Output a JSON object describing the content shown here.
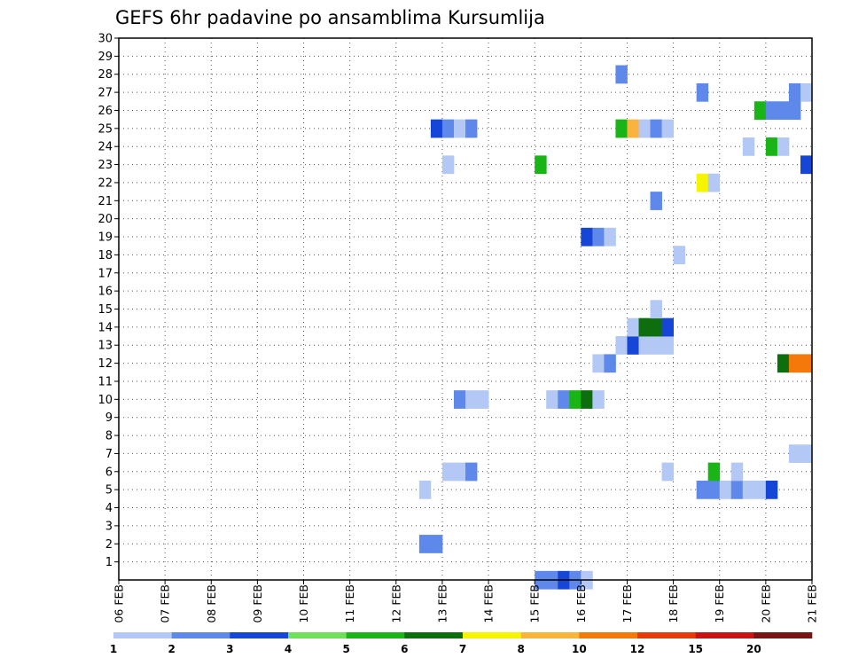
{
  "chart_data": {
    "type": "heatmap",
    "title": "GEFS 6hr padavine po ansamblima Kursumlija",
    "y_ticks": [
      "1",
      "2",
      "3",
      "4",
      "5",
      "6",
      "7",
      "8",
      "9",
      "10",
      "11",
      "12",
      "13",
      "14",
      "15",
      "16",
      "17",
      "18",
      "19",
      "20",
      "21",
      "22",
      "23",
      "24",
      "25",
      "26",
      "27",
      "28",
      "29",
      "30"
    ],
    "ylim": [
      0,
      30
    ],
    "x_ticks": [
      "06 FEB",
      "07 FEB",
      "08 FEB",
      "09 FEB",
      "10 FEB",
      "11 FEB",
      "12 FEB",
      "13 FEB",
      "14 FEB",
      "15 FEB",
      "16 FEB",
      "17 FEB",
      "18 FEB",
      "19 FEB",
      "20 FEB",
      "21 FEB"
    ],
    "x_start_day": "06 FEB",
    "steps_per_day": 4,
    "grid": true,
    "legend": "bottom",
    "colorbar": {
      "labels": [
        "1",
        "2",
        "3",
        "4",
        "5",
        "6",
        "7",
        "8",
        "10",
        "12",
        "15",
        "20"
      ],
      "colors": [
        "#b4c8f5",
        "#5e88ea",
        "#1546d6",
        "#6ee05a",
        "#19b415",
        "#0d6e0d",
        "#f5f500",
        "#fab43c",
        "#f5780a",
        "#e63c0a",
        "#c81414",
        "#781414"
      ]
    },
    "cells": [
      {
        "step": 26,
        "member": 2,
        "level": "2"
      },
      {
        "step": 27,
        "member": 2,
        "level": "2"
      },
      {
        "step": 26,
        "member": 5,
        "level": "1"
      },
      {
        "step": 28,
        "member": 6,
        "level": "1"
      },
      {
        "step": 29,
        "member": 6,
        "level": "1"
      },
      {
        "step": 30,
        "member": 6,
        "level": "2"
      },
      {
        "step": 28,
        "member": 23,
        "level": "1"
      },
      {
        "step": 27,
        "member": 25,
        "level": "3"
      },
      {
        "step": 28,
        "member": 25,
        "level": "2"
      },
      {
        "step": 29,
        "member": 25,
        "level": "1"
      },
      {
        "step": 30,
        "member": 25,
        "level": "2"
      },
      {
        "step": 29,
        "member": 10,
        "level": "2"
      },
      {
        "step": 30,
        "member": 10,
        "level": "1"
      },
      {
        "step": 31,
        "member": 10,
        "level": "1"
      },
      {
        "step": 36,
        "member": 0,
        "level": "2"
      },
      {
        "step": 37,
        "member": 0,
        "level": "2"
      },
      {
        "step": 38,
        "member": 0,
        "level": "3"
      },
      {
        "step": 39,
        "member": 0,
        "level": "2"
      },
      {
        "step": 40,
        "member": 0,
        "level": "1"
      },
      {
        "step": 37,
        "member": 10,
        "level": "1"
      },
      {
        "step": 38,
        "member": 10,
        "level": "2"
      },
      {
        "step": 39,
        "member": 10,
        "level": "5"
      },
      {
        "step": 40,
        "member": 10,
        "level": "6"
      },
      {
        "step": 41,
        "member": 10,
        "level": "1"
      },
      {
        "step": 36,
        "member": 23,
        "level": "5"
      },
      {
        "step": 41,
        "member": 12,
        "level": "1"
      },
      {
        "step": 42,
        "member": 12,
        "level": "2"
      },
      {
        "step": 40,
        "member": 19,
        "level": "3"
      },
      {
        "step": 41,
        "member": 19,
        "level": "2"
      },
      {
        "step": 42,
        "member": 19,
        "level": "1"
      },
      {
        "step": 43,
        "member": 25,
        "level": "5"
      },
      {
        "step": 44,
        "member": 25,
        "level": "8"
      },
      {
        "step": 45,
        "member": 25,
        "level": "1"
      },
      {
        "step": 46,
        "member": 25,
        "level": "2"
      },
      {
        "step": 47,
        "member": 25,
        "level": "1"
      },
      {
        "step": 43,
        "member": 28,
        "level": "2"
      },
      {
        "step": 43,
        "member": 13,
        "level": "1"
      },
      {
        "step": 44,
        "member": 13,
        "level": "3"
      },
      {
        "step": 45,
        "member": 13,
        "level": "1"
      },
      {
        "step": 46,
        "member": 13,
        "level": "1"
      },
      {
        "step": 47,
        "member": 13,
        "level": "1"
      },
      {
        "step": 44,
        "member": 14,
        "level": "1"
      },
      {
        "step": 45,
        "member": 14,
        "level": "6"
      },
      {
        "step": 46,
        "member": 14,
        "level": "6"
      },
      {
        "step": 47,
        "member": 14,
        "level": "3"
      },
      {
        "step": 46,
        "member": 15,
        "level": "1"
      },
      {
        "step": 46,
        "member": 21,
        "level": "2"
      },
      {
        "step": 47,
        "member": 6,
        "level": "1"
      },
      {
        "step": 48,
        "member": 18,
        "level": "1"
      },
      {
        "step": 50,
        "member": 5,
        "level": "2"
      },
      {
        "step": 51,
        "member": 5,
        "level": "2"
      },
      {
        "step": 52,
        "member": 5,
        "level": "1"
      },
      {
        "step": 53,
        "member": 5,
        "level": "2"
      },
      {
        "step": 54,
        "member": 5,
        "level": "1"
      },
      {
        "step": 51,
        "member": 6,
        "level": "5"
      },
      {
        "step": 53,
        "member": 6,
        "level": "1"
      },
      {
        "step": 50,
        "member": 22,
        "level": "7"
      },
      {
        "step": 51,
        "member": 22,
        "level": "1"
      },
      {
        "step": 50,
        "member": 27,
        "level": "2"
      },
      {
        "step": 54,
        "member": 24,
        "level": "1"
      },
      {
        "step": 55,
        "member": 5,
        "level": "1"
      },
      {
        "step": 56,
        "member": 5,
        "level": "3"
      },
      {
        "step": 55,
        "member": 26,
        "level": "5"
      },
      {
        "step": 56,
        "member": 26,
        "level": "2"
      },
      {
        "step": 57,
        "member": 26,
        "level": "2"
      },
      {
        "step": 58,
        "member": 26,
        "level": "2"
      },
      {
        "step": 56,
        "member": 24,
        "level": "5"
      },
      {
        "step": 57,
        "member": 24,
        "level": "1"
      },
      {
        "step": 57,
        "member": 12,
        "level": "6"
      },
      {
        "step": 58,
        "member": 12,
        "level": "10"
      },
      {
        "step": 59,
        "member": 12,
        "level": "10"
      },
      {
        "step": 58,
        "member": 7,
        "level": "1"
      },
      {
        "step": 59,
        "member": 7,
        "level": "1"
      },
      {
        "step": 58,
        "member": 27,
        "level": "2"
      },
      {
        "step": 59,
        "member": 27,
        "level": "1"
      },
      {
        "step": 59,
        "member": 23,
        "level": "3"
      }
    ]
  }
}
